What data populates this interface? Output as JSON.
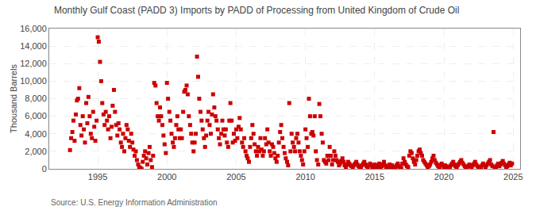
{
  "chart_data": {
    "type": "scatter",
    "title": "Monthly Gulf Coast (PADD 3) Imports by PADD of Processing from United Kingdom of Crude Oil",
    "ylabel": "Thousand Barrels",
    "source": "Source: U.S. Energy Information Administration",
    "color": "#CC0000",
    "marker": "square",
    "grid": true,
    "xlim": [
      1991.5,
      2025.5
    ],
    "ylim": [
      0,
      16000
    ],
    "xticks": [
      1995,
      2000,
      2005,
      2010,
      2015,
      2020,
      2025
    ],
    "yticks": [
      0,
      {
        "value": 2000,
        "label": "2,000"
      },
      {
        "value": 4000,
        "label": "4,000"
      },
      {
        "value": 6000,
        "label": "6,000"
      },
      {
        "value": 8000,
        "label": "8,000"
      },
      {
        "value": 10000,
        "label": "10,000"
      },
      {
        "value": 12000,
        "label": "12,000"
      },
      {
        "value": 14000,
        "label": "14,000"
      },
      {
        "value": 16000,
        "label": "16,000"
      }
    ],
    "x": [
      1993.0,
      1993.08,
      1993.17,
      1993.25,
      1993.33,
      1993.42,
      1993.5,
      1993.58,
      1993.67,
      1993.75,
      1993.83,
      1993.92,
      1994.0,
      1994.08,
      1994.17,
      1994.25,
      1994.33,
      1994.42,
      1994.5,
      1994.58,
      1994.67,
      1994.75,
      1994.83,
      1994.92,
      1995.0,
      1995.08,
      1995.17,
      1995.25,
      1995.33,
      1995.42,
      1995.5,
      1995.58,
      1995.67,
      1995.75,
      1995.83,
      1995.92,
      1996.0,
      1996.08,
      1996.17,
      1996.25,
      1996.33,
      1996.42,
      1996.5,
      1996.58,
      1996.67,
      1996.75,
      1996.83,
      1996.92,
      1997.0,
      1997.08,
      1997.17,
      1997.25,
      1997.33,
      1997.42,
      1997.5,
      1997.58,
      1997.67,
      1997.75,
      1997.83,
      1997.92,
      1998.0,
      1998.08,
      1998.17,
      1998.25,
      1998.33,
      1998.42,
      1998.5,
      1998.58,
      1998.67,
      1998.75,
      1998.83,
      1998.92,
      1999.0,
      1999.08,
      1999.17,
      1999.25,
      1999.33,
      1999.42,
      1999.5,
      1999.58,
      1999.67,
      1999.75,
      1999.83,
      1999.92,
      2000.0,
      2000.08,
      2000.17,
      2000.25,
      2000.33,
      2000.42,
      2000.5,
      2000.58,
      2000.67,
      2000.75,
      2000.83,
      2000.92,
      2001.0,
      2001.08,
      2001.17,
      2001.25,
      2001.33,
      2001.42,
      2001.5,
      2001.58,
      2001.67,
      2001.75,
      2001.83,
      2001.92,
      2002.0,
      2002.08,
      2002.17,
      2002.25,
      2002.33,
      2002.42,
      2002.5,
      2002.58,
      2002.67,
      2002.75,
      2002.83,
      2002.92,
      2003.0,
      2003.08,
      2003.17,
      2003.25,
      2003.33,
      2003.42,
      2003.5,
      2003.58,
      2003.67,
      2003.75,
      2003.83,
      2003.92,
      2004.0,
      2004.08,
      2004.17,
      2004.25,
      2004.33,
      2004.42,
      2004.5,
      2004.58,
      2004.67,
      2004.75,
      2004.83,
      2004.92,
      2005.0,
      2005.08,
      2005.17,
      2005.25,
      2005.33,
      2005.42,
      2005.5,
      2005.58,
      2005.67,
      2005.75,
      2005.83,
      2005.92,
      2006.0,
      2006.08,
      2006.17,
      2006.25,
      2006.33,
      2006.42,
      2006.5,
      2006.58,
      2006.67,
      2006.75,
      2006.83,
      2006.92,
      2007.0,
      2007.08,
      2007.17,
      2007.25,
      2007.33,
      2007.42,
      2007.5,
      2007.58,
      2007.67,
      2007.75,
      2007.83,
      2007.92,
      2008.0,
      2008.08,
      2008.17,
      2008.25,
      2008.33,
      2008.42,
      2008.5,
      2008.58,
      2008.67,
      2008.75,
      2008.83,
      2008.92,
      2009.0,
      2009.08,
      2009.17,
      2009.25,
      2009.33,
      2009.42,
      2009.5,
      2009.58,
      2009.67,
      2009.75,
      2009.83,
      2009.92,
      2010.0,
      2010.08,
      2010.17,
      2010.25,
      2010.33,
      2010.42,
      2010.5,
      2010.58,
      2010.67,
      2010.75,
      2010.83,
      2010.92,
      2011.0,
      2011.08,
      2011.17,
      2011.25,
      2011.33,
      2011.42,
      2011.5,
      2011.58,
      2011.67,
      2011.75,
      2011.83,
      2011.92,
      2012.0,
      2012.08,
      2012.17,
      2012.25,
      2012.33,
      2012.42,
      2012.5,
      2012.58,
      2012.67,
      2012.75,
      2012.83,
      2012.92,
      2013.0,
      2013.08,
      2013.17,
      2013.25,
      2013.33,
      2013.42,
      2013.5,
      2013.58,
      2013.67,
      2013.75,
      2013.83,
      2013.92,
      2014.0,
      2014.08,
      2014.17,
      2014.25,
      2014.33,
      2014.42,
      2014.5,
      2014.58,
      2014.67,
      2014.75,
      2014.83,
      2014.92,
      2015.0,
      2015.08,
      2015.17,
      2015.25,
      2015.33,
      2015.42,
      2015.5,
      2015.58,
      2015.67,
      2015.75,
      2015.83,
      2015.92,
      2016.0,
      2016.08,
      2016.17,
      2016.25,
      2016.33,
      2016.42,
      2016.5,
      2016.58,
      2016.67,
      2016.75,
      2016.83,
      2016.92,
      2017.0,
      2017.08,
      2017.17,
      2017.25,
      2017.33,
      2017.42,
      2017.5,
      2017.58,
      2017.67,
      2017.75,
      2017.83,
      2017.92,
      2018.0,
      2018.08,
      2018.17,
      2018.25,
      2018.33,
      2018.42,
      2018.5,
      2018.58,
      2018.67,
      2018.75,
      2018.83,
      2018.92,
      2019.0,
      2019.08,
      2019.17,
      2019.25,
      2019.33,
      2019.42,
      2019.5,
      2019.58,
      2019.67,
      2019.75,
      2019.83,
      2019.92,
      2020.0,
      2020.08,
      2020.17,
      2020.25,
      2020.33,
      2020.42,
      2020.5,
      2020.58,
      2020.67,
      2020.75,
      2020.83,
      2020.92,
      2021.0,
      2021.08,
      2021.17,
      2021.25,
      2021.33,
      2021.42,
      2021.5,
      2021.58,
      2021.67,
      2021.75,
      2021.83,
      2021.92,
      2022.0,
      2022.08,
      2022.17,
      2022.25,
      2022.33,
      2022.42,
      2022.5,
      2022.58,
      2022.67,
      2022.75,
      2022.83,
      2022.92,
      2023.0,
      2023.08,
      2023.17,
      2023.25,
      2023.33,
      2023.42,
      2023.5,
      2023.58,
      2023.67,
      2023.75,
      2023.83,
      2023.92,
      2024.0,
      2024.08,
      2024.17,
      2024.25,
      2024.33,
      2024.42,
      2024.5,
      2024.58,
      2024.67,
      2024.75,
      2024.83,
      2024.92
    ],
    "values": [
      2141,
      3500,
      4200,
      5500,
      3200,
      6200,
      7800,
      8000,
      9200,
      5000,
      3800,
      6000,
      4500,
      3000,
      7500,
      5200,
      8200,
      6000,
      4000,
      3500,
      6500,
      4800,
      3200,
      5500,
      15000,
      14500,
      12200,
      10000,
      7500,
      6200,
      5000,
      6500,
      5500,
      4500,
      6000,
      3500,
      4800,
      7200,
      9000,
      6500,
      5000,
      3800,
      5200,
      4500,
      3000,
      2500,
      4000,
      2000,
      3500,
      5000,
      4500,
      3200,
      2500,
      4000,
      3000,
      2200,
      1500,
      2000,
      1000,
      500,
      200,
      100,
      0,
      800,
      1500,
      2000,
      1200,
      500,
      1800,
      2500,
      1000,
      200,
      1500,
      9800,
      9500,
      7500,
      6000,
      5500,
      7000,
      6000,
      5000,
      3800,
      2800,
      1800,
      9800,
      8000,
      6500,
      5500,
      4000,
      3000,
      2500,
      3500,
      5000,
      6000,
      4500,
      3500,
      4500,
      3500,
      6500,
      8800,
      9000,
      9500,
      8500,
      6000,
      5000,
      4000,
      3000,
      2000,
      3000,
      4000,
      12800,
      10500,
      8000,
      6500,
      5500,
      4500,
      3500,
      2500,
      3800,
      5500,
      6500,
      5000,
      4000,
      6200,
      8500,
      7000,
      6000,
      5500,
      4500,
      3500,
      2800,
      4000,
      5500,
      4500,
      3800,
      4500,
      3000,
      2500,
      5500,
      7500,
      5500,
      3000,
      4000,
      3200,
      4500,
      3500,
      4800,
      5800,
      4500,
      3000,
      2500,
      3500,
      2000,
      1500,
      1200,
      800,
      2500,
      3500,
      5000,
      4000,
      2800,
      2000,
      1500,
      2500,
      2000,
      3500,
      2200,
      1500,
      2000,
      3500,
      2800,
      4500,
      3000,
      2000,
      1500,
      2800,
      2500,
      1800,
      1200,
      800,
      1500,
      3000,
      4200,
      5000,
      3500,
      2500,
      1800,
      1200,
      800,
      400,
      7500,
      2000,
      4000,
      3000,
      2500,
      2000,
      3500,
      4000,
      3000,
      2000,
      1500,
      1000,
      500,
      2000,
      4500,
      3500,
      2500,
      8000,
      6000,
      4000,
      4200,
      3800,
      6000,
      2000,
      1000,
      500,
      7400,
      6000,
      4000,
      3000,
      1000,
      800,
      600,
      1500,
      1000,
      2500,
      1500,
      500,
      1000,
      2000,
      1500,
      1000,
      800,
      400,
      600,
      900,
      1200,
      800,
      400,
      200,
      500,
      800,
      600,
      400,
      300,
      200,
      400,
      600,
      800,
      500,
      300,
      100,
      200,
      400,
      600,
      800,
      500,
      300,
      200,
      400,
      600,
      400,
      200,
      100,
      500,
      300,
      200,
      400,
      600,
      200,
      300,
      500,
      800,
      400,
      200,
      100,
      300,
      500,
      200,
      400,
      200,
      100,
      200,
      400,
      600,
      300,
      200,
      100,
      600,
      1200,
      800,
      500,
      300,
      200,
      1500,
      2000,
      1800,
      1200,
      800,
      500,
      1000,
      1500,
      2000,
      2200,
      1800,
      1500,
      1000,
      800,
      600,
      400,
      200,
      300,
      500,
      800,
      1200,
      1500,
      1000,
      700,
      500,
      300,
      200,
      400,
      600,
      400,
      200,
      400,
      300,
      200,
      100,
      200,
      400,
      600,
      800,
      500,
      300,
      200,
      400,
      600,
      800,
      1000,
      700,
      500,
      300,
      200,
      100,
      300,
      500,
      400,
      200,
      400,
      600,
      800,
      500,
      300,
      200,
      100,
      200,
      400,
      600,
      400,
      200,
      400,
      600,
      800,
      1000,
      500,
      300,
      4200,
      200,
      100,
      400,
      600,
      300,
      500,
      700,
      900,
      600,
      400,
      200,
      300,
      500,
      700,
      400,
      600
    ]
  }
}
